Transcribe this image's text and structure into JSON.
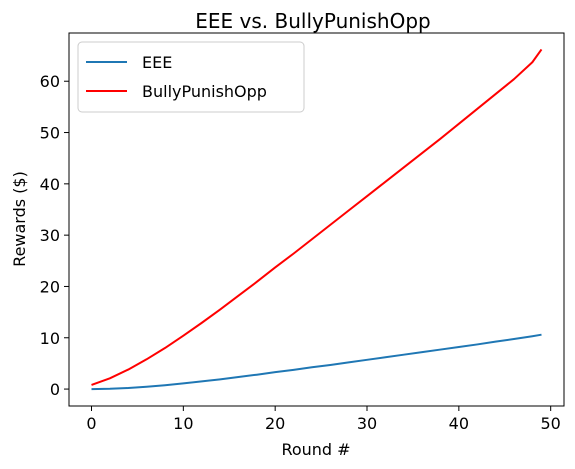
{
  "chart_data": {
    "type": "line",
    "title": "EEE vs. BullyPunishOpp",
    "xlabel": "Round #",
    "ylabel": "Rewards ($)",
    "xlim": [
      -2.45,
      51.45
    ],
    "ylim": [
      -3.3,
      69.4
    ],
    "xticks": [
      0,
      10,
      20,
      30,
      40,
      50
    ],
    "yticks": [
      0,
      10,
      20,
      30,
      40,
      50,
      60
    ],
    "grid": false,
    "legend_position": "top-left",
    "series": [
      {
        "name": "EEE",
        "color": "#1f77b4",
        "x": [
          0,
          2,
          4,
          6,
          8,
          10,
          12,
          14,
          16,
          18,
          20,
          22,
          24,
          26,
          28,
          30,
          32,
          34,
          36,
          38,
          40,
          42,
          44,
          46,
          48,
          49
        ],
        "y": [
          0.0,
          0.05,
          0.2,
          0.45,
          0.75,
          1.1,
          1.5,
          1.9,
          2.35,
          2.8,
          3.3,
          3.75,
          4.25,
          4.7,
          5.2,
          5.7,
          6.2,
          6.7,
          7.2,
          7.7,
          8.2,
          8.7,
          9.25,
          9.75,
          10.3,
          10.6
        ]
      },
      {
        "name": "BullyPunishOpp",
        "color": "#ff0000",
        "x": [
          0,
          2,
          4,
          6,
          8,
          10,
          12,
          14,
          16,
          18,
          20,
          22,
          24,
          26,
          28,
          30,
          32,
          34,
          36,
          38,
          40,
          42,
          44,
          46,
          48,
          49
        ],
        "y": [
          0.8,
          2.1,
          3.8,
          5.8,
          8.0,
          10.4,
          12.9,
          15.5,
          18.2,
          20.9,
          23.7,
          26.4,
          29.2,
          32.0,
          34.8,
          37.6,
          40.4,
          43.2,
          46.0,
          48.8,
          51.7,
          54.6,
          57.5,
          60.4,
          63.7,
          66.2
        ]
      }
    ]
  }
}
